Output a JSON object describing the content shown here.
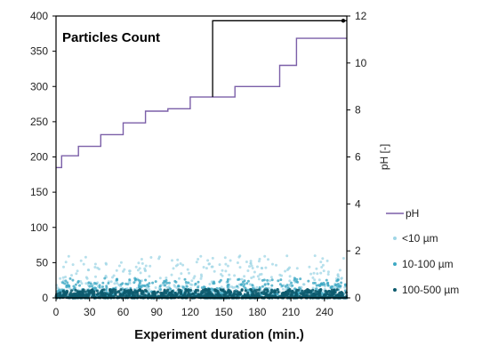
{
  "chart_data": {
    "type": "scatter",
    "title": "Particles Count",
    "xlabel": "Experiment duration (min.)",
    "ylabel": "",
    "y2label": "pH [-]",
    "xlim": [
      0,
      260
    ],
    "ylim": [
      0,
      400
    ],
    "y2lim": [
      0,
      12
    ],
    "x_ticks": [
      0,
      30,
      60,
      90,
      120,
      150,
      180,
      210,
      240
    ],
    "y_ticks": [
      0,
      50,
      100,
      150,
      200,
      250,
      300,
      350,
      400
    ],
    "y2_ticks": [
      0,
      2,
      4,
      6,
      8,
      10,
      12
    ],
    "legend_position": "right",
    "series": [
      {
        "name": "pH",
        "type": "line",
        "axis": "y2",
        "color": "#7b5fa8",
        "x": [
          0,
          5,
          5,
          20,
          20,
          40,
          40,
          60,
          60,
          80,
          80,
          100,
          100,
          120,
          120,
          140,
          140,
          160,
          160,
          180,
          180,
          200,
          200,
          215,
          215,
          260
        ],
        "y": [
          5.55,
          5.55,
          6.05,
          6.05,
          6.45,
          6.45,
          6.95,
          6.95,
          7.45,
          7.45,
          7.95,
          7.95,
          8.05,
          8.05,
          8.55,
          8.55,
          8.55,
          8.55,
          9.0,
          9.0,
          9.0,
          9.0,
          9.9,
          9.9,
          11.05,
          11.05
        ]
      },
      {
        "name": "<10 µm",
        "type": "scatter",
        "axis": "y",
        "color": "#9fd6e6",
        "y_range": [
          8,
          60
        ]
      },
      {
        "name": "10-100 µm",
        "type": "scatter",
        "axis": "y",
        "color": "#3ea9c4",
        "y_range": [
          3,
          28
        ]
      },
      {
        "name": "100-500 µm",
        "type": "scatter",
        "axis": "y",
        "color": "#0d5b6e",
        "y_range": [
          0,
          12
        ]
      },
      {
        "name": "",
        "type": "line",
        "axis": "y2",
        "color": "#000000",
        "x": [
          140,
          140,
          260
        ],
        "y": [
          8.55,
          11.8,
          11.8
        ]
      }
    ]
  }
}
